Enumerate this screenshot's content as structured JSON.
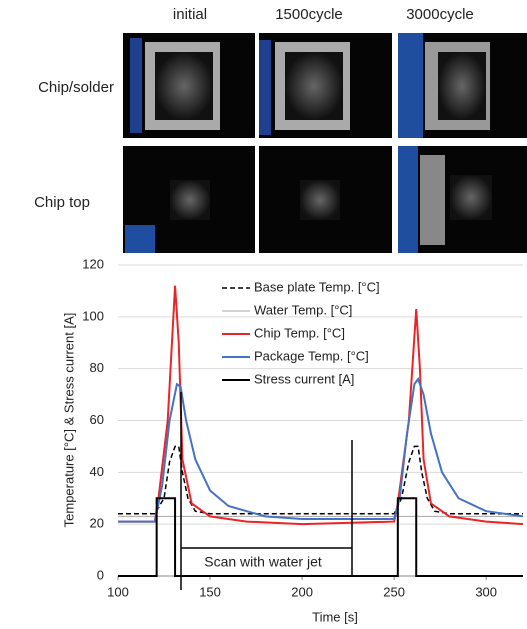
{
  "figure": {
    "columns": [
      "initial",
      "1500cycle",
      "3000cycle"
    ],
    "rows": [
      "Chip/solder",
      "Chip top"
    ]
  },
  "chart_data": {
    "type": "line",
    "xlabel": "Time [s]",
    "ylabel": "Temperature [°C] & Stress current [A]",
    "annotation": "Scan with water jet",
    "xlim": [
      100,
      320
    ],
    "xticks": [
      100,
      150,
      200,
      250,
      300
    ],
    "ylim": [
      0,
      120
    ],
    "yticks": [
      0,
      20,
      40,
      60,
      80,
      100,
      120
    ],
    "grid": true,
    "legend": "top-right",
    "series": [
      {
        "name": "Base plate Temp. [°C]",
        "color": "#000000",
        "dash": true,
        "width": 1.5,
        "x": [
          100,
          120,
          125,
          128,
          131,
          133,
          135,
          138,
          142,
          150,
          250,
          254,
          258,
          261,
          263,
          265,
          268,
          272,
          280,
          320
        ],
        "values": [
          24,
          24,
          30,
          44,
          50,
          50,
          40,
          30,
          25,
          24,
          24,
          30,
          44,
          50,
          50,
          40,
          30,
          25,
          24,
          24
        ]
      },
      {
        "name": "Water Temp. [°C]",
        "color": "#a6a6a6",
        "dash": false,
        "width": 1,
        "x": [
          100,
          320
        ],
        "values": [
          23,
          23
        ]
      },
      {
        "name": "Chip Temp. [°C]",
        "color": "#e8262a",
        "dash": false,
        "width": 2,
        "x": [
          100,
          120,
          122,
          127,
          131,
          133,
          135,
          140,
          150,
          170,
          200,
          250,
          252,
          258,
          262,
          264,
          266,
          270,
          280,
          300,
          320
        ],
        "values": [
          21,
          21,
          30,
          60,
          112,
          90,
          45,
          28,
          23,
          21,
          20,
          21,
          28,
          60,
          103,
          80,
          45,
          28,
          23,
          21,
          20
        ]
      },
      {
        "name": "Package Temp. [°C]",
        "color": "#4472c4",
        "dash": false,
        "width": 2,
        "x": [
          100,
          120,
          124,
          128,
          132,
          134,
          137,
          142,
          150,
          160,
          180,
          200,
          230,
          250,
          253,
          257,
          261,
          263,
          266,
          270,
          276,
          285,
          300,
          320
        ],
        "values": [
          21,
          21,
          35,
          60,
          74,
          73,
          60,
          45,
          33,
          27,
          23,
          22,
          22,
          22,
          30,
          55,
          74,
          76,
          70,
          55,
          40,
          30,
          25,
          23
        ]
      },
      {
        "name": "Stress current [A]",
        "color": "#000000",
        "dash": false,
        "width": 2,
        "x": [
          100,
          121,
          121,
          131,
          131,
          252,
          252,
          262,
          262,
          320
        ],
        "values": [
          0,
          0,
          30,
          30,
          0,
          0,
          30,
          30,
          0,
          0
        ]
      }
    ]
  }
}
